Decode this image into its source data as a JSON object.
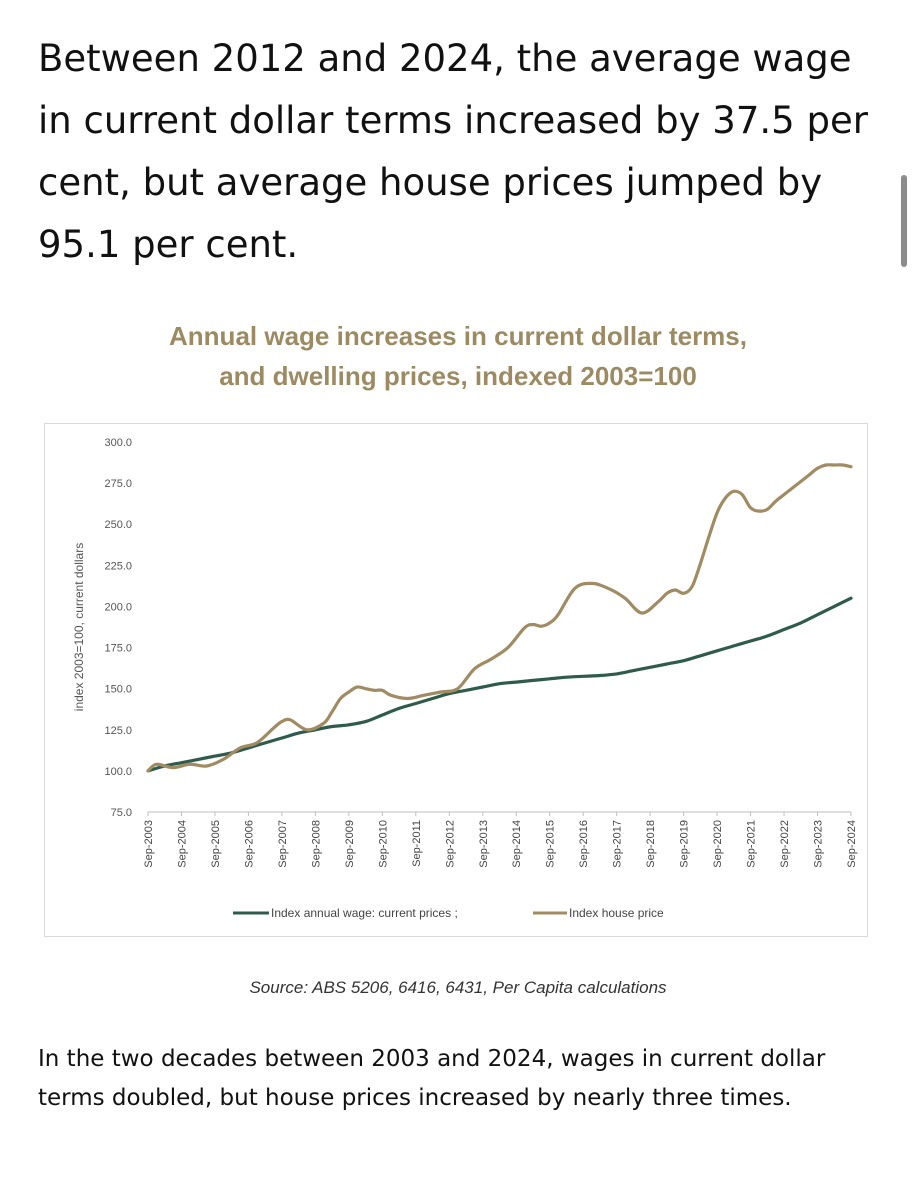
{
  "headline": "Between 2012 and 2024, the average wage in current dollar terms increased by 37.5 per cent, but average house prices jumped by 95.1 per cent.",
  "body_text": "In the two decades between 2003 and 2024, wages in current dollar terms doubled, but house prices increased by nearly three times.",
  "colors": {
    "wage": "#2e5b4c",
    "house": "#a08b62",
    "title": "#9c8a63"
  },
  "chart_data": {
    "type": "line",
    "title": "Annual wage increases in current dollar terms,",
    "subtitle": "and dwelling prices, indexed 2003=100",
    "ylabel": "index 2003=100, current dollars",
    "xlabel": "",
    "source": "Source: ABS 5206, 6416, 6431, Per Capita calculations",
    "ylim": [
      75,
      300
    ],
    "yticks": [
      "300.0",
      "275.0",
      "250.0",
      "225.0",
      "200.0",
      "175.0",
      "150.0",
      "125.0",
      "100.0",
      "75.0"
    ],
    "xticks": [
      "Sep-2003",
      "Sep-2004",
      "Sep-2005",
      "Sep-2006",
      "Sep-2007",
      "Sep-2008",
      "Sep-2009",
      "Sep-2010",
      "Sep-2011",
      "Sep-2012",
      "Sep-2013",
      "Sep-2014",
      "Sep-2015",
      "Sep-2016",
      "Sep-2017",
      "Sep-2018",
      "Sep-2019",
      "Sep-2020",
      "Sep-2021",
      "Sep-2022",
      "Sep-2023",
      "Sep-2024"
    ],
    "legend_position": "bottom",
    "series": [
      {
        "name": "Index annual wage: current prices ;",
        "x": [
          2003.75,
          2004.25,
          2004.75,
          2005.25,
          2005.75,
          2006.25,
          2006.75,
          2007.25,
          2007.75,
          2008.25,
          2008.75,
          2009.25,
          2009.75,
          2010.25,
          2010.75,
          2011.25,
          2011.75,
          2012.25,
          2012.75,
          2013.25,
          2013.75,
          2014.25,
          2014.75,
          2015.25,
          2015.75,
          2016.25,
          2016.75,
          2017.25,
          2017.75,
          2018.25,
          2018.75,
          2019.25,
          2019.75,
          2020.25,
          2020.75,
          2021.25,
          2021.75,
          2022.25,
          2022.75,
          2023.25,
          2023.75,
          2024.25,
          2024.75
        ],
        "values": [
          100,
          103,
          105,
          107,
          109,
          111,
          114,
          117,
          120,
          123,
          125,
          127,
          128,
          130,
          134,
          138,
          141,
          144,
          147,
          149,
          151,
          153,
          154,
          155,
          156,
          157,
          157.5,
          158,
          159,
          161,
          163,
          165,
          167,
          170,
          173,
          176,
          179,
          182,
          186,
          190,
          195,
          200,
          205
        ]
      },
      {
        "name": "Index house price",
        "x": [
          2003.75,
          2004.0,
          2004.5,
          2005.0,
          2005.5,
          2006.0,
          2006.5,
          2007.0,
          2007.5,
          2007.75,
          2008.0,
          2008.5,
          2009.0,
          2009.25,
          2009.5,
          2009.75,
          2010.0,
          2010.25,
          2010.5,
          2010.75,
          2011.0,
          2011.5,
          2012.0,
          2012.5,
          2013.0,
          2013.5,
          2014.0,
          2014.5,
          2015.0,
          2015.25,
          2015.5,
          2015.75,
          2016.0,
          2016.5,
          2017.0,
          2017.5,
          2018.0,
          2018.5,
          2019.0,
          2019.25,
          2019.5,
          2019.75,
          2020.0,
          2020.25,
          2020.5,
          2020.75,
          2021.0,
          2021.25,
          2021.5,
          2021.75,
          2022.0,
          2022.25,
          2022.5,
          2022.75,
          2023.0,
          2023.25,
          2023.5,
          2023.75,
          2024.0,
          2024.25,
          2024.5,
          2024.75
        ],
        "values": [
          100,
          104,
          102,
          104,
          103,
          107,
          114,
          117,
          126,
          130,
          131,
          125,
          129,
          136,
          144,
          148,
          151,
          150,
          149,
          149,
          146,
          144,
          146,
          148,
          150,
          162,
          168,
          175,
          187,
          189,
          188,
          190,
          195,
          211,
          214,
          211,
          205,
          196,
          203,
          208,
          210,
          208,
          212,
          226,
          242,
          257,
          266,
          270,
          268,
          260,
          258,
          259,
          264,
          268,
          272,
          276,
          280,
          284,
          286,
          286,
          286,
          285
        ]
      }
    ]
  }
}
